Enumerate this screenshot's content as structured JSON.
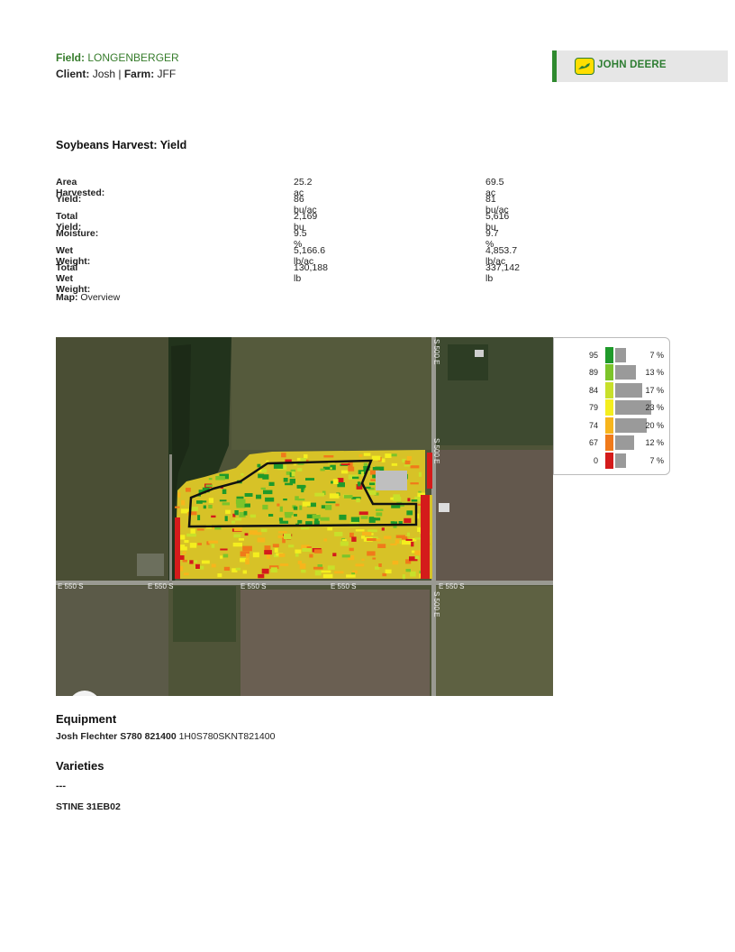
{
  "header": {
    "field_label": "Field:",
    "field_value": "LONGENBERGER",
    "client_label": "Client:",
    "client_value": "Josh",
    "farm_label": "Farm:",
    "farm_value": "JFF",
    "logo_text": "JOHN DEERE",
    "brand_green": "#367c2b",
    "brand_yellow": "#ffde00"
  },
  "report": {
    "title": "Soybeans Harvest: Yield",
    "stats": [
      {
        "label": "Area Harvested:",
        "col1": "25.2 ac",
        "col2": "69.5 ac"
      },
      {
        "label": "Yield:",
        "col1": "86 bu/ac",
        "col2": "81 bu/ac"
      },
      {
        "label": "Total Yield:",
        "col1": "2,169 bu",
        "col2": "5,616 bu"
      },
      {
        "label": "Moisture:",
        "col1": "9.5 %",
        "col2": "9.7 %"
      },
      {
        "label": "Wet Weight:",
        "col1": "5,166.6 lb/ac",
        "col2": "4,853.7 lb/ac"
      },
      {
        "label": "Total Wet Weight:",
        "col1": "130,188 lb",
        "col2": "337,142 lb"
      }
    ],
    "map_label": "Map:",
    "map_value": "Overview"
  },
  "map": {
    "roads": [
      "S 500 E",
      "S 500 E",
      "S 500 E",
      "E 550 S",
      "E 550 S",
      "E 550 S",
      "E 550 S",
      "E 550 S"
    ]
  },
  "legend": {
    "rows": [
      {
        "value": "95",
        "pct": "7 %",
        "share": 7,
        "color": "#1f9a2a"
      },
      {
        "value": "89",
        "pct": "13 %",
        "share": 13,
        "color": "#7cc42a"
      },
      {
        "value": "84",
        "pct": "17 %",
        "share": 17,
        "color": "#c8e02a"
      },
      {
        "value": "79",
        "pct": "23 %",
        "share": 23,
        "color": "#f4ee1e"
      },
      {
        "value": "74",
        "pct": "20 %",
        "share": 20,
        "color": "#f7b51c"
      },
      {
        "value": "67",
        "pct": "12 %",
        "share": 12,
        "color": "#f07a1a"
      },
      {
        "value": "0",
        "pct": "7 %",
        "share": 7,
        "color": "#d41b1b"
      }
    ]
  },
  "equipment": {
    "title": "Equipment",
    "name": "Josh Flechter S780 821400",
    "serial": "1H0S780SKNT821400"
  },
  "varieties": {
    "title": "Varieties",
    "dash": "---",
    "items": [
      "STINE 31EB02"
    ]
  }
}
